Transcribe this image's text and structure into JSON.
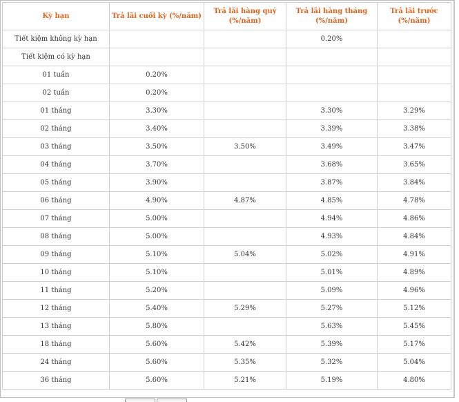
{
  "table": {
    "headers": [
      "Kỳ hạn",
      "Trả lãi cuối  kỳ (%/năm)",
      "Trả lãi hàng quý (%/năm)",
      "Trả lãi hàng tháng (%/năm)",
      "Trả lãi trước (%/năm)"
    ],
    "rows": [
      [
        "Tiết kiệm không kỳ hạn",
        "",
        "",
        "0.20%",
        ""
      ],
      [
        "Tiết kiệm có kỳ hạn",
        "",
        "",
        "",
        ""
      ],
      [
        "01 tuần",
        "0.20%",
        "",
        "",
        ""
      ],
      [
        "02 tuần",
        "0.20%",
        "",
        "",
        ""
      ],
      [
        "01 tháng",
        "3.30%",
        "",
        "3.30%",
        "3.29%"
      ],
      [
        "02 tháng",
        "3.40%",
        "",
        "3.39%",
        "3.38%"
      ],
      [
        "03 tháng",
        "3.50%",
        "3.50%",
        "3.49%",
        "3.47%"
      ],
      [
        "04 tháng",
        "3.70%",
        "",
        "3.68%",
        "3.65%"
      ],
      [
        "05 tháng",
        "3.90%",
        "",
        "3.87%",
        "3.84%"
      ],
      [
        "06 tháng",
        "4.90%",
        "4.87%",
        "4.85%",
        "4.78%"
      ],
      [
        "07 tháng",
        "5.00%",
        "",
        "4.94%",
        "4.86%"
      ],
      [
        "08 tháng",
        "5.00%",
        "",
        "4.93%",
        "4.84%"
      ],
      [
        "09 tháng",
        "5.10%",
        "5.04%",
        "5.02%",
        "4.91%"
      ],
      [
        "10 tháng",
        "5.10%",
        "",
        "5.01%",
        "4.89%"
      ],
      [
        "11 tháng",
        "5.20%",
        "",
        "5.09%",
        "4.96%"
      ],
      [
        "12 tháng",
        "5.40%",
        "5.29%",
        "5.27%",
        "5.12%"
      ],
      [
        "13 tháng",
        "5.80%",
        "",
        "5.63%",
        "5.45%"
      ],
      [
        "18 tháng",
        "5.60%",
        "5.42%",
        "5.39%",
        "5.17%"
      ],
      [
        "24 tháng",
        "5.60%",
        "5.35%",
        "5.32%",
        "5.04%"
      ],
      [
        "36 tháng",
        "5.60%",
        "5.21%",
        "5.19%",
        "4.80%"
      ]
    ]
  },
  "colors": {
    "header_text": "#e0641e",
    "body_text": "#333333",
    "border": "#cfcfcf"
  }
}
